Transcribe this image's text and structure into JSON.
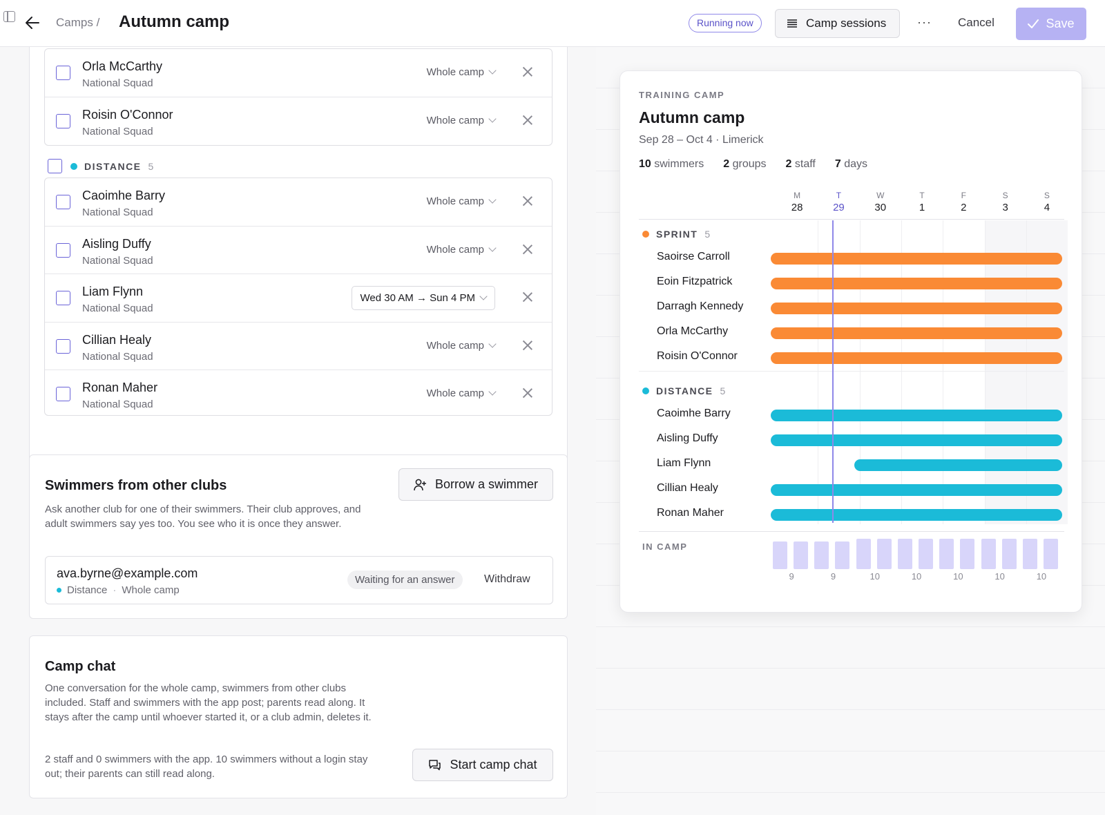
{
  "header": {
    "breadcrumb": "Camps /",
    "title": "Autumn camp",
    "status_badge": "Running now",
    "sessions_label": "Camp sessions",
    "more_label": "···",
    "cancel_label": "Cancel",
    "save_label": "Save"
  },
  "roster": {
    "sprint_rows": [
      {
        "name": "Orla McCarthy",
        "squad": "National Squad",
        "range": "Whole camp"
      },
      {
        "name": "Roisin O'Connor",
        "squad": "National Squad",
        "range": "Whole camp"
      }
    ],
    "distance_group": {
      "label": "DISTANCE",
      "count": "5",
      "color": "#1bbbd8"
    },
    "distance_rows": [
      {
        "name": "Caoimhe Barry",
        "squad": "National Squad",
        "range": "Whole camp"
      },
      {
        "name": "Aisling Duffy",
        "squad": "National Squad",
        "range": "Whole camp"
      },
      {
        "name": "Liam Flynn",
        "squad": "National Squad",
        "range": "Wed 30 AM → Sun 4 PM"
      },
      {
        "name": "Cillian Healy",
        "squad": "National Squad",
        "range": "Whole camp"
      },
      {
        "name": "Ronan Maher",
        "squad": "National Squad",
        "range": "Whole camp"
      }
    ]
  },
  "other_clubs": {
    "title": "Swimmers from other clubs",
    "description": "Ask another club for one of their swimmers. Their club approves, and adult swimmers say yes too. You see who it is once they answer.",
    "borrow_label": "Borrow a swimmer",
    "invite": {
      "email": "ava.byrne@example.com",
      "group": "Distance",
      "range": "Whole camp",
      "status": "Waiting for an answer",
      "withdraw_label": "Withdraw"
    }
  },
  "camp_chat": {
    "title": "Camp chat",
    "description": "One conversation for the whole camp, swimmers from other clubs included. Staff and swimmers with the app post; parents read along. It stays after the camp until whoever started it, or a club admin, deletes it.",
    "note": "2 staff and 0 swimmers with the app. 10 swimmers without a login stay out; their parents can still read along.",
    "start_label": "Start camp chat"
  },
  "preview": {
    "kicker": "TRAINING CAMP",
    "title": "Autumn camp",
    "subtitle": "Sep 28 – Oct 4 · Limerick",
    "stats": [
      {
        "value": "10",
        "label": "swimmers"
      },
      {
        "value": "2",
        "label": "groups"
      },
      {
        "value": "2",
        "label": "staff"
      },
      {
        "value": "7",
        "label": "days"
      }
    ],
    "days": [
      {
        "letter": "M",
        "num": "28"
      },
      {
        "letter": "T",
        "num": "29",
        "today": true
      },
      {
        "letter": "W",
        "num": "30"
      },
      {
        "letter": "T",
        "num": "1"
      },
      {
        "letter": "F",
        "num": "2"
      },
      {
        "letter": "S",
        "num": "3"
      },
      {
        "letter": "S",
        "num": "4"
      }
    ],
    "groups": [
      {
        "label": "SPRINT",
        "count": "5",
        "color": "#fa8a35",
        "swimmers": [
          {
            "name": "Saoirse Carroll",
            "start_day": 0,
            "end_day": 7
          },
          {
            "name": "Eoin Fitzpatrick",
            "start_day": 0,
            "end_day": 7
          },
          {
            "name": "Darragh Kennedy",
            "start_day": 0,
            "end_day": 7
          },
          {
            "name": "Orla McCarthy",
            "start_day": 0,
            "end_day": 7
          },
          {
            "name": "Roisin O'Connor",
            "start_day": 0,
            "end_day": 7
          }
        ]
      },
      {
        "label": "DISTANCE",
        "count": "5",
        "color": "#1bbbd8",
        "swimmers": [
          {
            "name": "Caoimhe Barry",
            "start_day": 0,
            "end_day": 7
          },
          {
            "name": "Aisling Duffy",
            "start_day": 0,
            "end_day": 7
          },
          {
            "name": "Liam Flynn",
            "start_day": 2,
            "end_day": 7
          },
          {
            "name": "Cillian Healy",
            "start_day": 0,
            "end_day": 7
          },
          {
            "name": "Ronan Maher",
            "start_day": 0,
            "end_day": 7
          }
        ]
      }
    ],
    "in_camp_label": "IN CAMP",
    "in_camp_counts": [
      9,
      9,
      10,
      10,
      10,
      10,
      10
    ],
    "in_camp_am_pm": [
      9,
      9,
      9,
      9,
      10,
      10,
      10,
      10,
      10,
      10,
      10,
      10,
      10,
      10
    ],
    "today_index": 1.5
  }
}
